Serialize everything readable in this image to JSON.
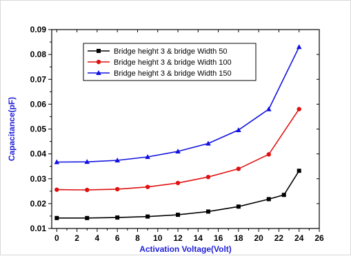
{
  "chart_data": {
    "type": "line",
    "title": "",
    "xlabel": "Activation Voltage(Volt)",
    "ylabel": "Capacitance(pF)",
    "xlim": [
      -0.5,
      26
    ],
    "ylim": [
      0.01,
      0.09
    ],
    "x_ticks": [
      0,
      2,
      4,
      6,
      8,
      10,
      12,
      14,
      16,
      18,
      20,
      22,
      24,
      26
    ],
    "y_ticks": [
      0.01,
      0.02,
      0.03,
      0.04,
      0.05,
      0.06,
      0.07,
      0.08,
      0.09
    ],
    "y_tick_labels": [
      "0.01",
      "0.02",
      "0.03",
      "0.04",
      "0.05",
      "0.06",
      "0.07",
      "0.08",
      "0.09"
    ],
    "grid": false,
    "legend_position": "top-center",
    "series": [
      {
        "name": "Bridge height 3 & bridge Width 50",
        "color": "#000000",
        "marker": "square",
        "points": [
          [
            0,
            0.0142
          ],
          [
            3,
            0.0142
          ],
          [
            6,
            0.0144
          ],
          [
            9,
            0.0148
          ],
          [
            12,
            0.0155
          ],
          [
            15,
            0.0168
          ],
          [
            18,
            0.0188
          ],
          [
            21,
            0.0218
          ],
          [
            22.5,
            0.0235
          ],
          [
            24,
            0.0332
          ]
        ]
      },
      {
        "name": "Bridge height 3 & bridge Width 100",
        "color": "#e01010",
        "marker": "circle",
        "points": [
          [
            0,
            0.0256
          ],
          [
            3,
            0.0255
          ],
          [
            6,
            0.0258
          ],
          [
            9,
            0.0267
          ],
          [
            12,
            0.0283
          ],
          [
            15,
            0.0307
          ],
          [
            18,
            0.034
          ],
          [
            21,
            0.0398
          ],
          [
            24,
            0.058
          ]
        ]
      },
      {
        "name": "Bridge height 3 & bridge Width 150",
        "color": "#1010e0",
        "marker": "triangle",
        "points": [
          [
            0,
            0.0367
          ],
          [
            3,
            0.0368
          ],
          [
            6,
            0.0374
          ],
          [
            9,
            0.0388
          ],
          [
            12,
            0.041
          ],
          [
            15,
            0.0442
          ],
          [
            18,
            0.0496
          ],
          [
            21,
            0.058
          ],
          [
            24,
            0.083
          ]
        ]
      }
    ]
  }
}
